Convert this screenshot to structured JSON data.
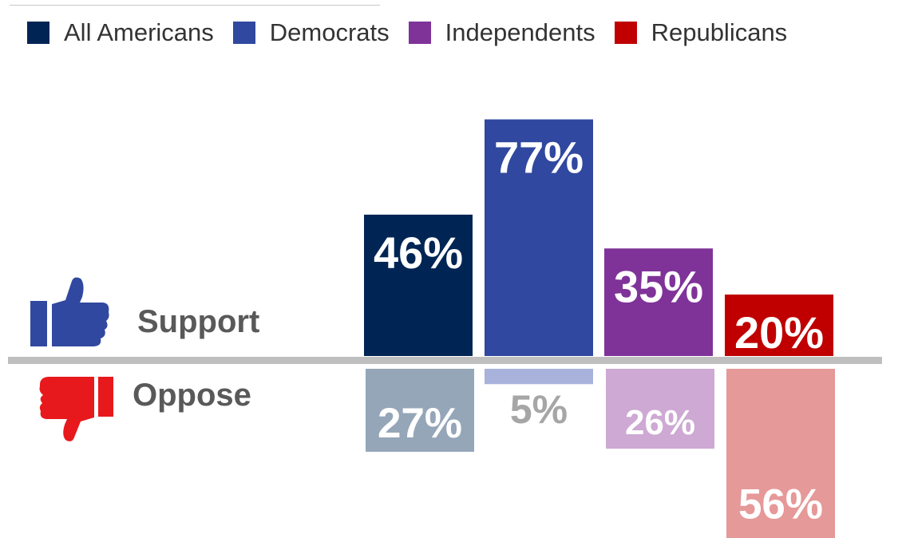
{
  "legend": {
    "items": [
      {
        "label": "All Americans",
        "color": "#002554"
      },
      {
        "label": "Democrats",
        "color": "#30489f"
      },
      {
        "label": "Independents",
        "color": "#7f3399"
      },
      {
        "label": "Republicans",
        "color": "#c00000"
      }
    ]
  },
  "labels": {
    "support": "Support",
    "oppose": "Oppose"
  },
  "icons": {
    "support": "thumbs-up-icon",
    "oppose": "thumbs-down-icon",
    "support_color": "#30489f",
    "oppose_color": "#e8191c"
  },
  "chart_data": {
    "type": "bar",
    "categories": [
      "All Americans",
      "Democrats",
      "Independents",
      "Republicans"
    ],
    "series": [
      {
        "name": "Support",
        "values": [
          46,
          77,
          35,
          20
        ],
        "labels": [
          "46%",
          "77%",
          "35%",
          "20%"
        ],
        "colors": [
          "#002554",
          "#30489f",
          "#7f3399",
          "#c00000"
        ]
      },
      {
        "name": "Oppose",
        "values": [
          27,
          5,
          26,
          56
        ],
        "labels": [
          "27%",
          "5%",
          "26%",
          "56%"
        ],
        "colors": [
          "#95a6b8",
          "#a8b2da",
          "#cda9d3",
          "#e59998"
        ]
      }
    ],
    "oppose_label_colors": [
      "#ffffff",
      "#a6a6a6",
      "#ffffff",
      "#ffffff"
    ],
    "orientation": "diverging: support above baseline, oppose below",
    "legend_position": "top",
    "grid": false
  }
}
